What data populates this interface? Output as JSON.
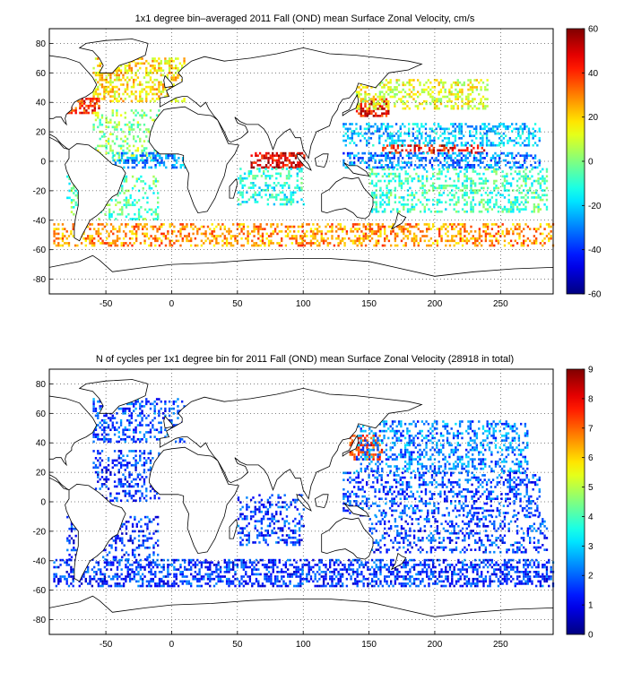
{
  "chart_data": [
    {
      "type": "heatmap",
      "title": "1x1 degree bin–averaged 2011 Fall (OND) mean Surface Zonal Velocity, cm/s",
      "xlabel": "",
      "ylabel": "",
      "xlim": [
        -93,
        290
      ],
      "ylim": [
        -90,
        90
      ],
      "xticks": [
        -50,
        0,
        50,
        100,
        150,
        200,
        250
      ],
      "yticks": [
        80,
        60,
        40,
        20,
        0,
        -20,
        -40,
        -60,
        -80
      ],
      "grid": true,
      "colorbar": {
        "min": -60,
        "max": 60,
        "ticks": [
          60,
          40,
          20,
          0,
          -20,
          -40,
          -60
        ],
        "colormap": "jet"
      },
      "patches": [
        {
          "lon": [
            -60,
            10
          ],
          "lat": [
            40,
            70
          ],
          "value": 18,
          "density": 0.45
        },
        {
          "lon": [
            -80,
            -55
          ],
          "lat": [
            32,
            42
          ],
          "value": 40,
          "density": 0.5
        },
        {
          "lon": [
            -60,
            -10
          ],
          "lat": [
            0,
            35
          ],
          "value": 2,
          "density": 0.3
        },
        {
          "lon": [
            -45,
            10
          ],
          "lat": [
            -5,
            5
          ],
          "value": -28,
          "density": 0.45
        },
        {
          "lon": [
            60,
            100
          ],
          "lat": [
            -5,
            5
          ],
          "value": 48,
          "density": 0.6
        },
        {
          "lon": [
            50,
            100
          ],
          "lat": [
            -30,
            -5
          ],
          "value": -12,
          "density": 0.35
        },
        {
          "lon": [
            140,
            165
          ],
          "lat": [
            30,
            42
          ],
          "value": 45,
          "density": 0.55
        },
        {
          "lon": [
            140,
            240
          ],
          "lat": [
            35,
            55
          ],
          "value": 12,
          "density": 0.4
        },
        {
          "lon": [
            130,
            280
          ],
          "lat": [
            10,
            25
          ],
          "value": -22,
          "density": 0.4
        },
        {
          "lon": [
            160,
            240
          ],
          "lat": [
            5,
            10
          ],
          "value": 45,
          "density": 0.45
        },
        {
          "lon": [
            130,
            280
          ],
          "lat": [
            -5,
            5
          ],
          "value": -30,
          "density": 0.45
        },
        {
          "lon": [
            150,
            285
          ],
          "lat": [
            -35,
            -5
          ],
          "value": -8,
          "density": 0.35
        },
        {
          "lon": [
            -90,
            290
          ],
          "lat": [
            -58,
            -42
          ],
          "value": 28,
          "density": 0.4
        },
        {
          "lon": [
            -80,
            -10
          ],
          "lat": [
            -40,
            -10
          ],
          "value": -5,
          "density": 0.3
        }
      ]
    },
    {
      "type": "heatmap",
      "title": "N of cycles per 1x1 degree bin for 2011 Fall (OND) mean Surface Zonal Velocity (28918 in total)",
      "xlabel": "",
      "ylabel": "",
      "xlim": [
        -93,
        290
      ],
      "ylim": [
        -90,
        90
      ],
      "xticks": [
        -50,
        0,
        50,
        100,
        150,
        200,
        250
      ],
      "yticks": [
        80,
        60,
        40,
        20,
        0,
        -20,
        -40,
        -60,
        -80
      ],
      "grid": true,
      "colorbar": {
        "min": 0,
        "max": 9,
        "ticks": [
          9,
          8,
          7,
          6,
          5,
          4,
          3,
          2,
          1,
          0
        ],
        "colormap": "jet"
      },
      "patches": [
        {
          "lon": [
            -60,
            10
          ],
          "lat": [
            40,
            70
          ],
          "value": 1.8,
          "density": 0.35
        },
        {
          "lon": [
            -60,
            -10
          ],
          "lat": [
            0,
            35
          ],
          "value": 1.5,
          "density": 0.3
        },
        {
          "lon": [
            135,
            160
          ],
          "lat": [
            28,
            45
          ],
          "value": 7.5,
          "density": 0.55
        },
        {
          "lon": [
            140,
            270
          ],
          "lat": [
            20,
            55
          ],
          "value": 2.2,
          "density": 0.35
        },
        {
          "lon": [
            130,
            280
          ],
          "lat": [
            -10,
            20
          ],
          "value": 1.8,
          "density": 0.35
        },
        {
          "lon": [
            50,
            100
          ],
          "lat": [
            -30,
            5
          ],
          "value": 1.6,
          "density": 0.35
        },
        {
          "lon": [
            -90,
            290
          ],
          "lat": [
            -58,
            -40
          ],
          "value": 1.5,
          "density": 0.45
        },
        {
          "lon": [
            -80,
            -10
          ],
          "lat": [
            -40,
            -10
          ],
          "value": 1.4,
          "density": 0.3
        },
        {
          "lon": [
            150,
            285
          ],
          "lat": [
            -35,
            -10
          ],
          "value": 1.6,
          "density": 0.3
        }
      ]
    }
  ]
}
